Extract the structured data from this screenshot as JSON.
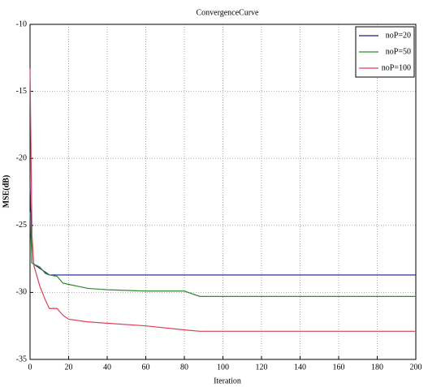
{
  "chart_data": {
    "type": "line",
    "title": "ConvergenceCurve",
    "x_label": "Iteration",
    "y_label": "MSE(dB)",
    "x": [
      0,
      1,
      2,
      5,
      8,
      10,
      14,
      17,
      20,
      30,
      40,
      60,
      80,
      88,
      100,
      200
    ],
    "series": [
      {
        "name": "noP=20",
        "color": "#1a1a8c",
        "values": [
          -22,
          -27.8,
          -27.9,
          -28.2,
          -28.5,
          -28.7,
          -28.7,
          -28.7,
          -28.7,
          -28.7,
          -28.7,
          -28.7,
          -28.7,
          -28.7,
          -28.7,
          -28.7
        ]
      },
      {
        "name": "noP=50",
        "color": "#2e8b2e",
        "values": [
          -24,
          -27.8,
          -27.9,
          -28.1,
          -28.6,
          -28.7,
          -28.8,
          -29.3,
          -29.4,
          -29.7,
          -29.8,
          -29.9,
          -29.9,
          -30.3,
          -30.3,
          -30.3
        ]
      },
      {
        "name": "noP=100",
        "color": "#d9405a",
        "values": [
          -13.3,
          -25.8,
          -28,
          -29.5,
          -30.6,
          -31.2,
          -31.2,
          -31.7,
          -32,
          -32.2,
          -32.3,
          -32.5,
          -32.8,
          -32.9,
          -32.9,
          -32.9
        ]
      }
    ],
    "xlim": [
      0,
      200
    ],
    "ylim": [
      -35,
      -10
    ],
    "xticks": [
      0,
      20,
      40,
      60,
      80,
      100,
      120,
      140,
      160,
      180,
      200
    ],
    "yticks": [
      -35,
      -30,
      -25,
      -20,
      -15,
      -10
    ],
    "grid": true,
    "legend": "top-right"
  }
}
